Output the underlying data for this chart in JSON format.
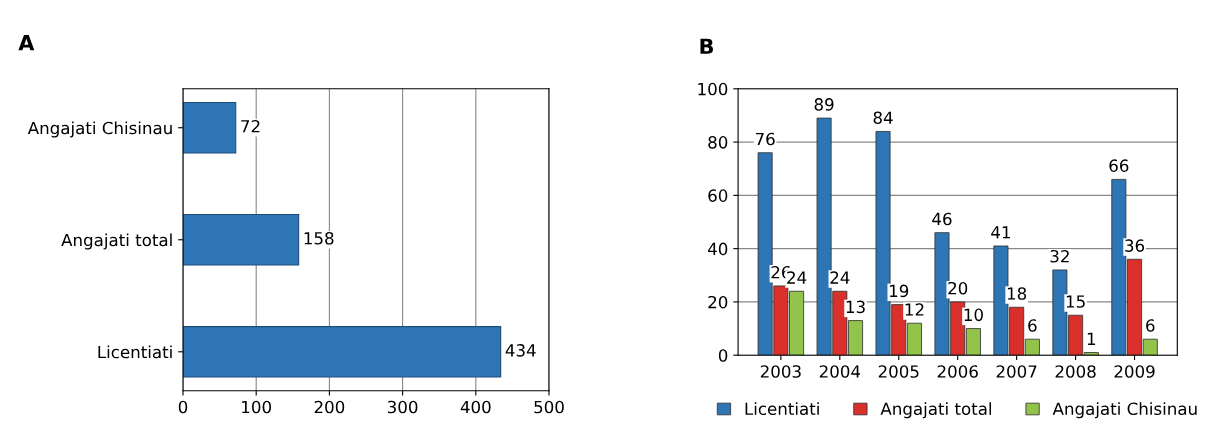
{
  "chart_data": [
    {
      "type": "bar",
      "title": "A",
      "orientation": "horizontal",
      "categories": [
        "Angajati Chisinau",
        "Angajati total",
        "Licentiati"
      ],
      "values": [
        72,
        158,
        434
      ],
      "color": "#2e75b6",
      "xlim": [
        0,
        500
      ],
      "xticks": [
        0,
        100,
        200,
        300,
        400,
        500
      ],
      "grid": "x",
      "data_labels": true
    },
    {
      "type": "bar",
      "title": "B",
      "categories": [
        "2003",
        "2004",
        "2005",
        "2006",
        "2007",
        "2008",
        "2009"
      ],
      "series": [
        {
          "name": "Licentiati",
          "color": "#2e75b6",
          "values": [
            76,
            89,
            84,
            46,
            41,
            32,
            66
          ]
        },
        {
          "name": "Angajati total",
          "color": "#d9302c",
          "values": [
            26,
            24,
            19,
            20,
            18,
            15,
            36
          ]
        },
        {
          "name": "Angajati Chisinau",
          "color": "#92c34a",
          "values": [
            24,
            13,
            12,
            10,
            6,
            1,
            6
          ]
        }
      ],
      "ylim": [
        0,
        100
      ],
      "yticks": [
        0,
        20,
        40,
        60,
        80,
        100
      ],
      "grid": "y",
      "legend": "bottom",
      "data_labels": true
    }
  ]
}
